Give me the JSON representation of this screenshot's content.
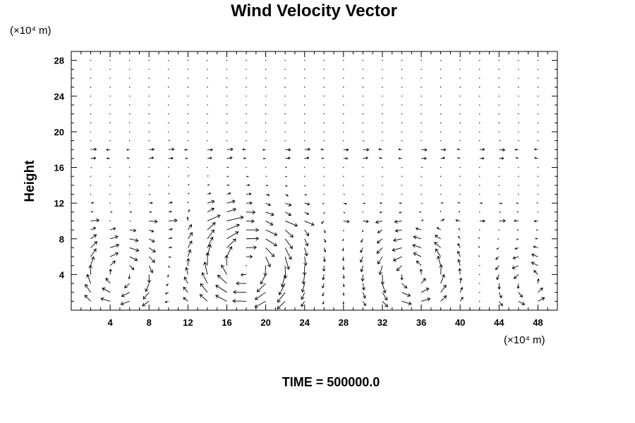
{
  "chart_data": {
    "type": "quiver",
    "title": "Wind Velocity Vector",
    "ylabel": "Height",
    "xlabel": "",
    "x_unit": "(×10⁴ m)",
    "y_unit": "(×10⁴ m)",
    "xlim": [
      0,
      50
    ],
    "ylim": [
      0,
      29
    ],
    "x_ticks": [
      4,
      8,
      12,
      16,
      20,
      24,
      28,
      32,
      36,
      40,
      44,
      48
    ],
    "y_ticks": [
      4,
      8,
      12,
      16,
      20,
      24,
      28
    ],
    "grid": false,
    "footer": "TIME = 500000.0",
    "grid_spacing": {
      "dx": 2,
      "dy": 1
    },
    "circulation_cells": [
      {
        "center_x": 5,
        "center_y": 4,
        "radius_x": 4,
        "radius_y": 4,
        "direction": "clockwise",
        "strength": 1.0
      },
      {
        "center_x": 18,
        "center_y": 5,
        "radius_x": 5,
        "radius_y": 5,
        "direction": "clockwise",
        "strength": 1.1
      },
      {
        "center_x": 35,
        "center_y": 4,
        "radius_x": 4,
        "radius_y": 4,
        "direction": "counterclockwise",
        "strength": 1.0
      },
      {
        "center_x": 47,
        "center_y": 3,
        "radius_x": 3,
        "radius_y": 3,
        "direction": "counterclockwise",
        "strength": 1.0
      }
    ],
    "upper_flow": [
      {
        "y": 18,
        "u": 0.5,
        "v": 0.0
      },
      {
        "y": 17,
        "u": 0.4,
        "v": 0.05
      },
      {
        "y": 12,
        "u": 0.25,
        "v": 0.0
      },
      {
        "y": 10,
        "u": 0.6,
        "v": 0.0
      }
    ]
  }
}
